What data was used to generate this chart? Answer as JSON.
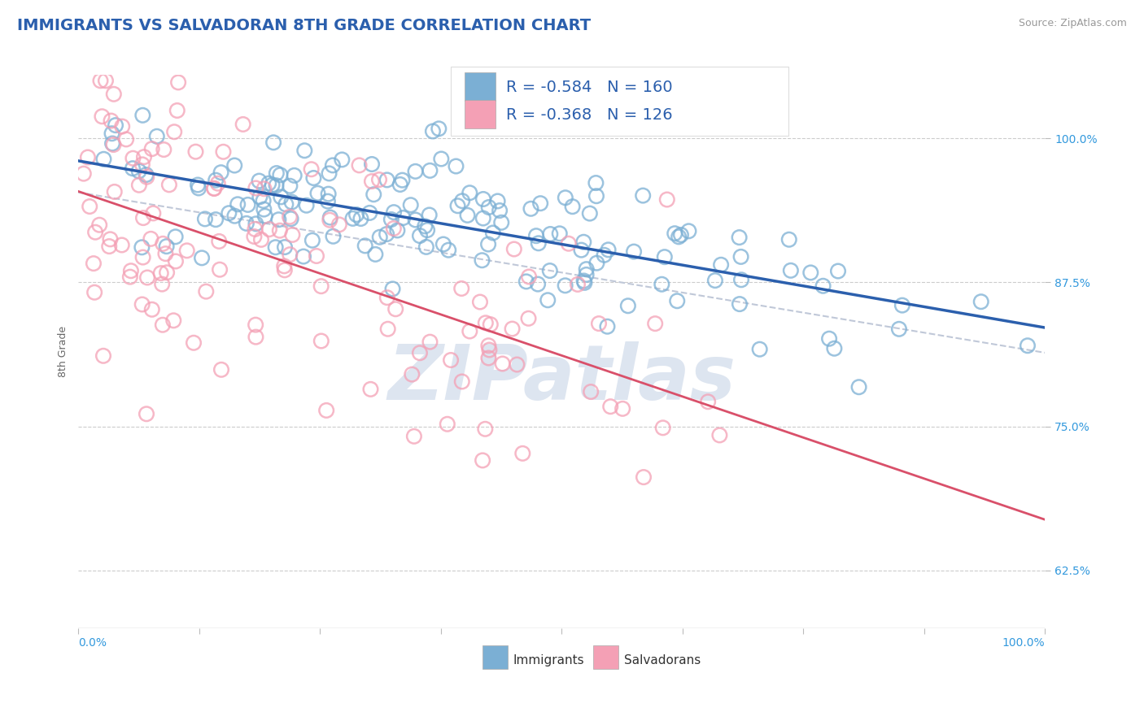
{
  "title": "IMMIGRANTS VS SALVADORAN 8TH GRADE CORRELATION CHART",
  "source": "Source: ZipAtlas.com",
  "ylabel": "8th Grade",
  "ytick_labels": [
    "62.5%",
    "75.0%",
    "87.5%",
    "100.0%"
  ],
  "ytick_values": [
    0.625,
    0.75,
    0.875,
    1.0
  ],
  "xtick_values": [
    0.0,
    0.125,
    0.25,
    0.375,
    0.5,
    0.625,
    0.75,
    0.875,
    1.0
  ],
  "xlim": [
    0.0,
    1.0
  ],
  "ylim": [
    0.575,
    1.055
  ],
  "r_immigrants": -0.584,
  "n_immigrants": 160,
  "r_salvadorans": -0.368,
  "n_salvadorans": 126,
  "color_immigrants": "#7bafd4",
  "color_salvadorans": "#f4a0b5",
  "color_trend_immigrants": "#2b5fad",
  "color_trend_salvadorans": "#d9506a",
  "color_dashed": "#c0c8d8",
  "background_color": "#ffffff",
  "title_color": "#2b5fad",
  "source_color": "#999999",
  "watermark_color": "#dde5f0",
  "legend_r_color": "#2b5fad",
  "legend_n_color": "#3399dd",
  "title_fontsize": 14,
  "axis_label_fontsize": 9,
  "tick_fontsize": 10,
  "legend_fontsize": 14,
  "seed_immigrants": 42,
  "seed_salvadorans": 99,
  "imm_trend_start_y": 0.985,
  "imm_trend_end_y": 0.835,
  "sal_trend_start_y": 0.94,
  "sal_trend_end_y": 0.7,
  "dash_trend_start_y": 0.975,
  "dash_trend_end_y": 0.68
}
